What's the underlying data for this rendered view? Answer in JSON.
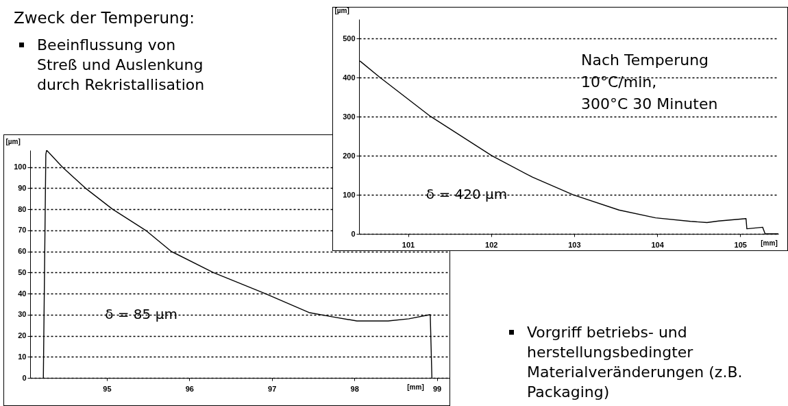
{
  "chart_data": [
    {
      "type": "other",
      "title": "Zweck der Temperung:",
      "annotations": [
        "Beeinflussung von Streß und Auslenkung durch Rekristallisation"
      ]
    },
    {
      "type": "line",
      "xlabel": "[mm]",
      "ylabel": "[µm]",
      "xlim": [
        100.41,
        105.46
      ],
      "ylim": [
        0,
        550
      ],
      "xticks": [
        101,
        102,
        103,
        104,
        105
      ],
      "yticks": [
        0,
        100,
        200,
        300,
        400,
        500
      ],
      "grid": "y",
      "line_style": "solid",
      "color": "#000000",
      "x": [
        100.42,
        100.66,
        101.27,
        102.01,
        102.5,
        102.99,
        103.54,
        103.98,
        104.4,
        104.6,
        104.74,
        105.07,
        105.08,
        105.27,
        105.3,
        105.46
      ],
      "values": [
        443,
        401,
        301,
        200,
        145,
        100,
        61,
        41,
        32,
        29,
        33,
        39,
        13,
        17,
        0,
        0
      ],
      "annotations": [
        "Nach Temperung\n10°C/min,\n300°C 30 Minuten",
        "δ = 420 µm"
      ]
    },
    {
      "type": "line",
      "xlabel": "[mm]",
      "ylabel": "[µm]",
      "xlim": [
        94.07,
        99.17
      ],
      "ylim": [
        0,
        108
      ],
      "xticks": [
        95,
        96,
        97,
        98,
        99
      ],
      "yticks": [
        0,
        10,
        20,
        30,
        40,
        50,
        60,
        70,
        80,
        90,
        100
      ],
      "grid": "y",
      "line_style": "solid",
      "color": "#000000",
      "x": [
        94.23,
        94.26,
        94.27,
        94.46,
        94.74,
        95.07,
        95.47,
        95.78,
        96.29,
        96.92,
        97.45,
        97.73,
        98.03,
        98.41,
        98.66,
        98.92,
        98.94
      ],
      "values": [
        0,
        106,
        108,
        100,
        90,
        80,
        70,
        60,
        50,
        40,
        31,
        29,
        27,
        27,
        28,
        30,
        0
      ],
      "annotations": [
        "δ = 85 µm"
      ]
    },
    {
      "type": "other",
      "annotations": [
        "Vorgriff betriebs- und herstellungsbedingter Materialveränderungen (z.B. Packaging)"
      ]
    }
  ]
}
